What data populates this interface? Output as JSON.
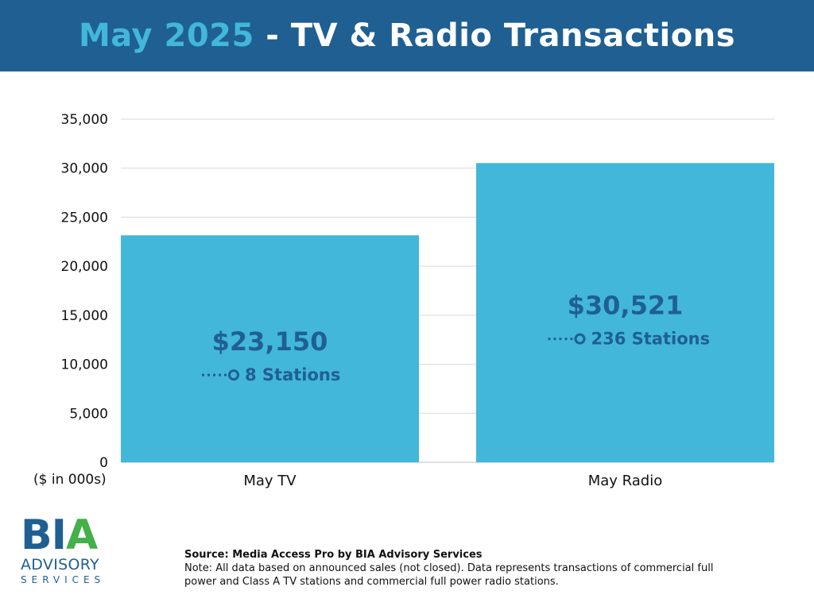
{
  "header": {
    "title_highlight": "May 2025",
    "title_rest": " - TV & Radio Transactions"
  },
  "colors": {
    "header_bg": "#1f5f92",
    "highlight": "#42b7d9",
    "bar": "#42b7d9",
    "label": "#1f5f92"
  },
  "chart_data": {
    "type": "bar",
    "title": "May 2025 - TV & Radio Transactions",
    "categories": [
      "May TV",
      "May Radio"
    ],
    "values": [
      23150,
      30521
    ],
    "value_labels": [
      "$23,150",
      "$30,521"
    ],
    "station_labels": [
      "8 Stations",
      "236 Stations"
    ],
    "ylim": [
      0,
      35000
    ],
    "yticks": [
      0,
      5000,
      10000,
      15000,
      20000,
      25000,
      30000,
      35000
    ],
    "ytick_labels": [
      "0",
      "5,000",
      "10,000",
      "15,000",
      "20,000",
      "25,000",
      "30,000",
      "35,000"
    ],
    "ylabel": "",
    "xlabel": "",
    "unit_note": "($ in 000s)",
    "grid": true
  },
  "logo": {
    "mark": "BIA",
    "line1": "ADVISORY",
    "line2": "SERVICES"
  },
  "footnote": {
    "source": "Source: Media Access Pro by BIA Advisory Services",
    "note": "Note: All data based on announced sales (not closed).  Data represents transactions of commercial full power and Class A TV stations and commercial full power radio stations."
  }
}
